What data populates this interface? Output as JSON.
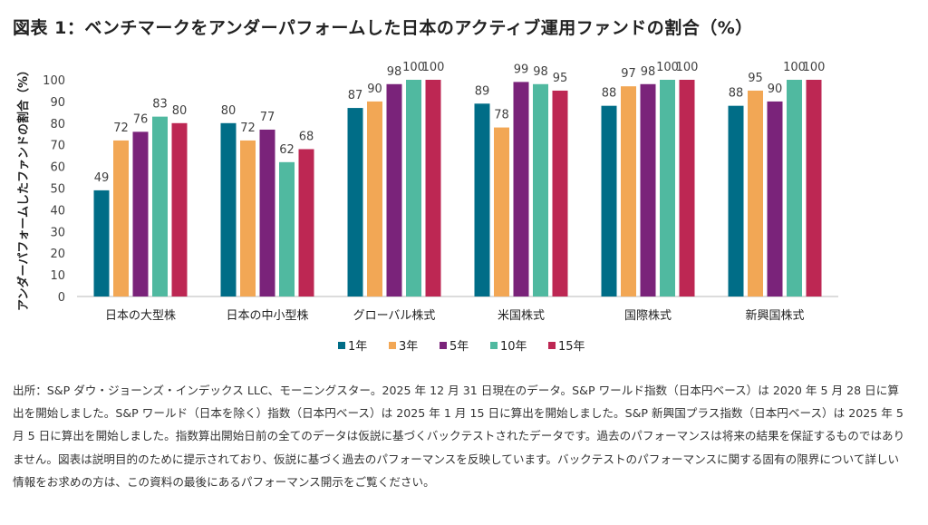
{
  "title": "図表 1：ベンチマークをアンダーパフォームした日本のアクティブ運用ファンドの割合（%）",
  "chart_data": {
    "type": "bar",
    "title": "図表 1：ベンチマークをアンダーパフォームした日本のアクティブ運用ファンドの割合（%）",
    "ylabel": "アンダーパフォームしたファンドの割合（%）",
    "xlabel": "",
    "ylim": [
      0,
      100
    ],
    "yticks": [
      0,
      10,
      20,
      30,
      40,
      50,
      60,
      70,
      80,
      90,
      100
    ],
    "grid": false,
    "legend": "bottom",
    "categories": [
      "日本の大型株",
      "日本の中小型株",
      "グローバル株式",
      "米国株式",
      "国際株式",
      "新興国株式"
    ],
    "series": [
      {
        "name": "1年",
        "color": "#006d87",
        "values": [
          49,
          80,
          87,
          89,
          88,
          88
        ]
      },
      {
        "name": "3年",
        "color": "#f2a755",
        "values": [
          72,
          72,
          90,
          78,
          97,
          95
        ]
      },
      {
        "name": "5年",
        "color": "#7a237a",
        "values": [
          76,
          77,
          98,
          99,
          98,
          90
        ]
      },
      {
        "name": "10年",
        "color": "#50b9a0",
        "values": [
          83,
          62,
          100,
          98,
          100,
          100
        ]
      },
      {
        "name": "15年",
        "color": "#bd2753",
        "values": [
          80,
          68,
          100,
          95,
          100,
          100
        ]
      }
    ]
  },
  "footnote": "出所：S&P ダウ・ジョーンズ・インデックス LLC、モーニングスター。2025 年 12 月 31 日現在のデータ。S&P ワールド指数（日本円ベース）は 2020 年 5 月 28 日に算出を開始しました。S&P ワールド（日本を除く）指数（日本円ベース）は 2025 年 1 月 15 日に算出を開始しました。S&P 新興国プラス指数（日本円ベース）は 2025 年 5 月 5 日に算出を開始しました。指数算出開始日前の全てのデータは仮説に基づくバックテストされたデータです。過去のパフォーマンスは将来の結果を保証するものではありません。図表は説明目的のために提示されており、仮説に基づく過去のパフォーマンスを反映しています。バックテストのパフォーマンスに関する固有の限界について詳しい情報をお求めの方は、この資料の最後にあるパフォーマンス開示をご覧ください。"
}
